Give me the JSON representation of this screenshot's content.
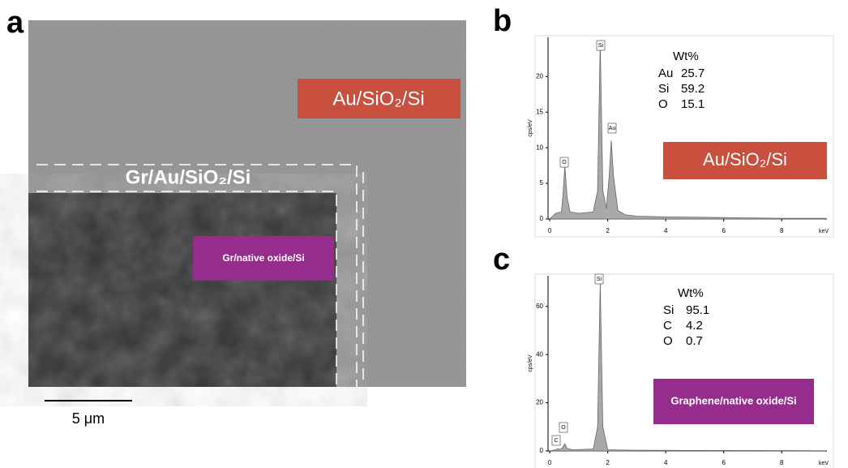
{
  "panel_a": {
    "label": "a",
    "top_region": "Au/SiO₂/Si",
    "border_region": "Gr/Au/SiO₂/Si",
    "dark_region": "Gr/native oxide/Si",
    "scale_bar": "5 μm"
  },
  "panel_b": {
    "label": "b",
    "chart": {
      "type": "area",
      "x": [
        0,
        0.2,
        0.4,
        0.45,
        0.52,
        0.6,
        0.7,
        1.0,
        1.5,
        1.65,
        1.74,
        1.83,
        1.95,
        2.05,
        2.12,
        2.2,
        2.35,
        2.6,
        3.0,
        4,
        6,
        8,
        9.5
      ],
      "values": [
        0,
        0.8,
        1,
        3,
        7.5,
        3,
        1,
        0.8,
        1,
        4,
        24.8,
        4,
        1.5,
        6,
        11,
        6,
        1.2,
        0.6,
        0.4,
        0.3,
        0.2,
        0.1,
        0.1
      ],
      "color": "#a9a9a9",
      "xlim": [
        -0.06,
        9.56
      ],
      "ylim": [
        0,
        25.5
      ],
      "xticks": [
        0,
        2,
        4,
        6,
        8
      ],
      "yticks": [
        0,
        5,
        10,
        15,
        20
      ],
      "x_label": "keV",
      "y_label": "cps/eV",
      "peak_labels": [
        "O",
        "Si",
        "Au"
      ]
    },
    "composition": {
      "title": "Wt%",
      "rows": [
        [
          "Au",
          "25.7"
        ],
        [
          "Si",
          "59.2"
        ],
        [
          "O",
          "15.1"
        ]
      ]
    },
    "sample_label": "Au/SiO₂/Si",
    "sample_color": "#c9503f"
  },
  "panel_c": {
    "label": "c",
    "chart": {
      "type": "area",
      "x": [
        0,
        0.2,
        0.28,
        0.35,
        0.45,
        0.52,
        0.6,
        0.8,
        1.5,
        1.65,
        1.74,
        1.83,
        2.0,
        3,
        6,
        9.5
      ],
      "values": [
        0,
        0.5,
        1,
        0.6,
        1.5,
        3,
        1,
        0.5,
        0.8,
        10,
        70,
        10,
        0.5,
        0.3,
        0.2,
        0.1
      ],
      "color": "#a9a9a9",
      "xlim": [
        -0.06,
        9.56
      ],
      "ylim": [
        0,
        72.7
      ],
      "xticks": [
        0,
        2,
        4,
        6,
        8
      ],
      "yticks": [
        0,
        20,
        40,
        60
      ],
      "x_label": "keV",
      "y_label": "cps/eV",
      "peak_labels": [
        "C",
        "O",
        "Si"
      ]
    },
    "composition": {
      "title": "Wt%",
      "rows": [
        [
          "Si",
          "95.1"
        ],
        [
          "C",
          "4.2"
        ],
        [
          "O",
          "0.7"
        ]
      ]
    },
    "sample_label": "Graphene/native oxide/Si",
    "sample_color": "#962d8c"
  }
}
